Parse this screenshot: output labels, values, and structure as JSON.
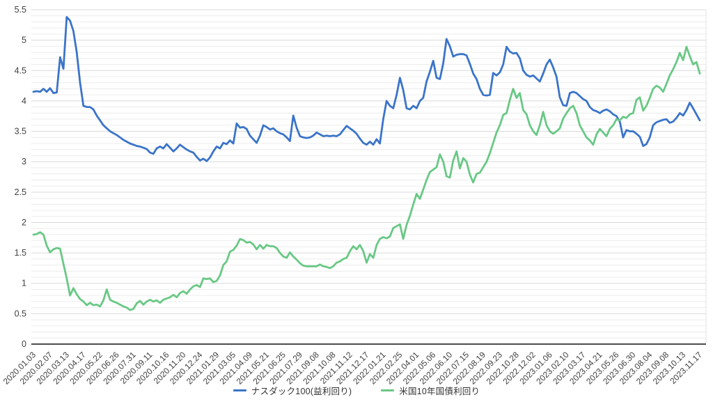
{
  "chart_data": {
    "type": "line",
    "title": "",
    "legend_position": "bottom",
    "grid": "on",
    "minor_grid_step": 0.1,
    "major_grid_step": 0.5,
    "ylim": [
      0,
      5.5
    ],
    "y_ticks": [
      "0",
      "0.5",
      "1",
      "1.5",
      "2",
      "2.5",
      "3",
      "3.5",
      "4",
      "4.5",
      "5",
      "5.5"
    ],
    "x_tick_every_n_points": 5,
    "x_tick_labels": [
      "2020.01.03",
      "2020.02.07",
      "2020.03.13",
      "2020.04.17",
      "2020.05.22",
      "2020.06.26",
      "2020.07.31",
      "2020.09.11",
      "2020.10.16",
      "2020.11.20",
      "2020.12.24",
      "2021.01.29",
      "2021.03.05",
      "2021.04.09",
      "2021.05.21",
      "2021.06.25",
      "2021.07.29",
      "2021.09.08",
      "2021.10.08",
      "2021.11.12",
      "2021.12.17",
      "2022.01.21",
      "2022.02.25",
      "2022.04.01",
      "2022.05.06",
      "2022.06.10",
      "2022.07.15",
      "2022.08.19",
      "2022.09.23",
      "2022.10.28",
      "2022.12.02",
      "2023.01.06",
      "2023.02.10",
      "2023.03.17",
      "2023.04.21",
      "2023.05.26",
      "2023.06.30",
      "2023.08.04",
      "2023.09.08",
      "2023.10.13",
      "2023.11.17"
    ],
    "colors": {
      "axis_text": "#404040",
      "zero_axis": "#4d4d4d",
      "minor_grid": "#ececec",
      "major_grid": "#d9d9d9",
      "plot_border": "#e0e0e0",
      "background": "#ffffff"
    },
    "series": [
      {
        "name": "ナスダック100(益利回り)",
        "color": "#3a74c9",
        "values": [
          4.15,
          4.16,
          4.15,
          4.2,
          4.15,
          4.21,
          4.13,
          4.14,
          4.72,
          4.53,
          5.38,
          5.32,
          5.15,
          4.8,
          4.3,
          3.92,
          3.9,
          3.9,
          3.86,
          3.76,
          3.68,
          3.6,
          3.55,
          3.5,
          3.47,
          3.44,
          3.4,
          3.36,
          3.33,
          3.3,
          3.28,
          3.26,
          3.25,
          3.23,
          3.21,
          3.15,
          3.13,
          3.22,
          3.25,
          3.22,
          3.29,
          3.23,
          3.17,
          3.22,
          3.28,
          3.24,
          3.2,
          3.17,
          3.15,
          3.08,
          3.02,
          3.05,
          3.01,
          3.07,
          3.17,
          3.25,
          3.22,
          3.31,
          3.29,
          3.35,
          3.3,
          3.63,
          3.56,
          3.57,
          3.54,
          3.43,
          3.37,
          3.31,
          3.43,
          3.6,
          3.57,
          3.53,
          3.55,
          3.5,
          3.47,
          3.45,
          3.4,
          3.34,
          3.76,
          3.56,
          3.42,
          3.4,
          3.39,
          3.4,
          3.43,
          3.48,
          3.45,
          3.42,
          3.43,
          3.42,
          3.43,
          3.42,
          3.45,
          3.52,
          3.59,
          3.55,
          3.51,
          3.46,
          3.38,
          3.31,
          3.28,
          3.33,
          3.28,
          3.37,
          3.3,
          3.7,
          4.0,
          3.92,
          3.88,
          4.1,
          4.38,
          4.18,
          3.88,
          3.86,
          3.92,
          3.88,
          4.0,
          4.05,
          4.32,
          4.48,
          4.66,
          4.38,
          4.36,
          4.62,
          5.02,
          4.9,
          4.73,
          4.76,
          4.77,
          4.77,
          4.75,
          4.61,
          4.45,
          4.36,
          4.2,
          4.1,
          4.09,
          4.1,
          4.46,
          4.42,
          4.47,
          4.6,
          4.89,
          4.81,
          4.78,
          4.79,
          4.7,
          4.5,
          4.43,
          4.4,
          4.42,
          4.37,
          4.32,
          4.45,
          4.6,
          4.68,
          4.55,
          4.4,
          4.06,
          3.93,
          3.92,
          4.13,
          4.15,
          4.13,
          4.08,
          4.03,
          4.0,
          3.9,
          3.85,
          3.83,
          3.8,
          3.84,
          3.86,
          3.83,
          3.78,
          3.75,
          3.66,
          3.4,
          3.52,
          3.5,
          3.5,
          3.46,
          3.41,
          3.26,
          3.29,
          3.4,
          3.6,
          3.65,
          3.67,
          3.69,
          3.7,
          3.64,
          3.66,
          3.72,
          3.8,
          3.76,
          3.85,
          3.97,
          3.88,
          3.78,
          3.68
        ]
      },
      {
        "name": "米国10年国債利回り",
        "color": "#69c885",
        "values": [
          1.8,
          1.81,
          1.84,
          1.8,
          1.62,
          1.51,
          1.56,
          1.58,
          1.57,
          1.32,
          1.08,
          0.8,
          0.92,
          0.82,
          0.74,
          0.7,
          0.64,
          0.68,
          0.64,
          0.65,
          0.62,
          0.72,
          0.9,
          0.73,
          0.7,
          0.68,
          0.65,
          0.62,
          0.6,
          0.56,
          0.58,
          0.67,
          0.71,
          0.65,
          0.7,
          0.73,
          0.7,
          0.72,
          0.68,
          0.73,
          0.75,
          0.77,
          0.81,
          0.77,
          0.84,
          0.87,
          0.83,
          0.9,
          0.95,
          0.97,
          0.94,
          1.08,
          1.07,
          1.08,
          1.02,
          1.04,
          1.13,
          1.3,
          1.36,
          1.52,
          1.55,
          1.62,
          1.73,
          1.71,
          1.67,
          1.68,
          1.64,
          1.56,
          1.63,
          1.57,
          1.63,
          1.61,
          1.61,
          1.58,
          1.5,
          1.44,
          1.42,
          1.51,
          1.44,
          1.39,
          1.33,
          1.29,
          1.28,
          1.28,
          1.28,
          1.28,
          1.31,
          1.28,
          1.27,
          1.25,
          1.28,
          1.34,
          1.36,
          1.4,
          1.42,
          1.53,
          1.61,
          1.56,
          1.63,
          1.53,
          1.34,
          1.48,
          1.42,
          1.63,
          1.73,
          1.76,
          1.74,
          1.77,
          1.91,
          1.94,
          1.97,
          1.73,
          1.96,
          2.11,
          2.3,
          2.47,
          2.39,
          2.54,
          2.7,
          2.83,
          2.87,
          2.91,
          3.12,
          3.0,
          2.76,
          2.74,
          3.02,
          3.17,
          2.89,
          3.06,
          3.0,
          2.79,
          2.66,
          2.8,
          2.82,
          2.91,
          3.0,
          3.14,
          3.31,
          3.48,
          3.6,
          3.77,
          3.8,
          4.02,
          4.2,
          4.05,
          4.13,
          3.85,
          3.78,
          3.6,
          3.5,
          3.44,
          3.6,
          3.82,
          3.6,
          3.5,
          3.46,
          3.5,
          3.55,
          3.71,
          3.8,
          3.88,
          3.92,
          3.8,
          3.6,
          3.5,
          3.4,
          3.35,
          3.28,
          3.45,
          3.54,
          3.48,
          3.42,
          3.54,
          3.6,
          3.7,
          3.68,
          3.74,
          3.72,
          3.78,
          3.8,
          4.02,
          4.06,
          3.84,
          3.92,
          4.05,
          4.2,
          4.25,
          4.22,
          4.15,
          4.28,
          4.42,
          4.52,
          4.64,
          4.79,
          4.67,
          4.89,
          4.74,
          4.6,
          4.64,
          4.45
        ]
      }
    ]
  }
}
